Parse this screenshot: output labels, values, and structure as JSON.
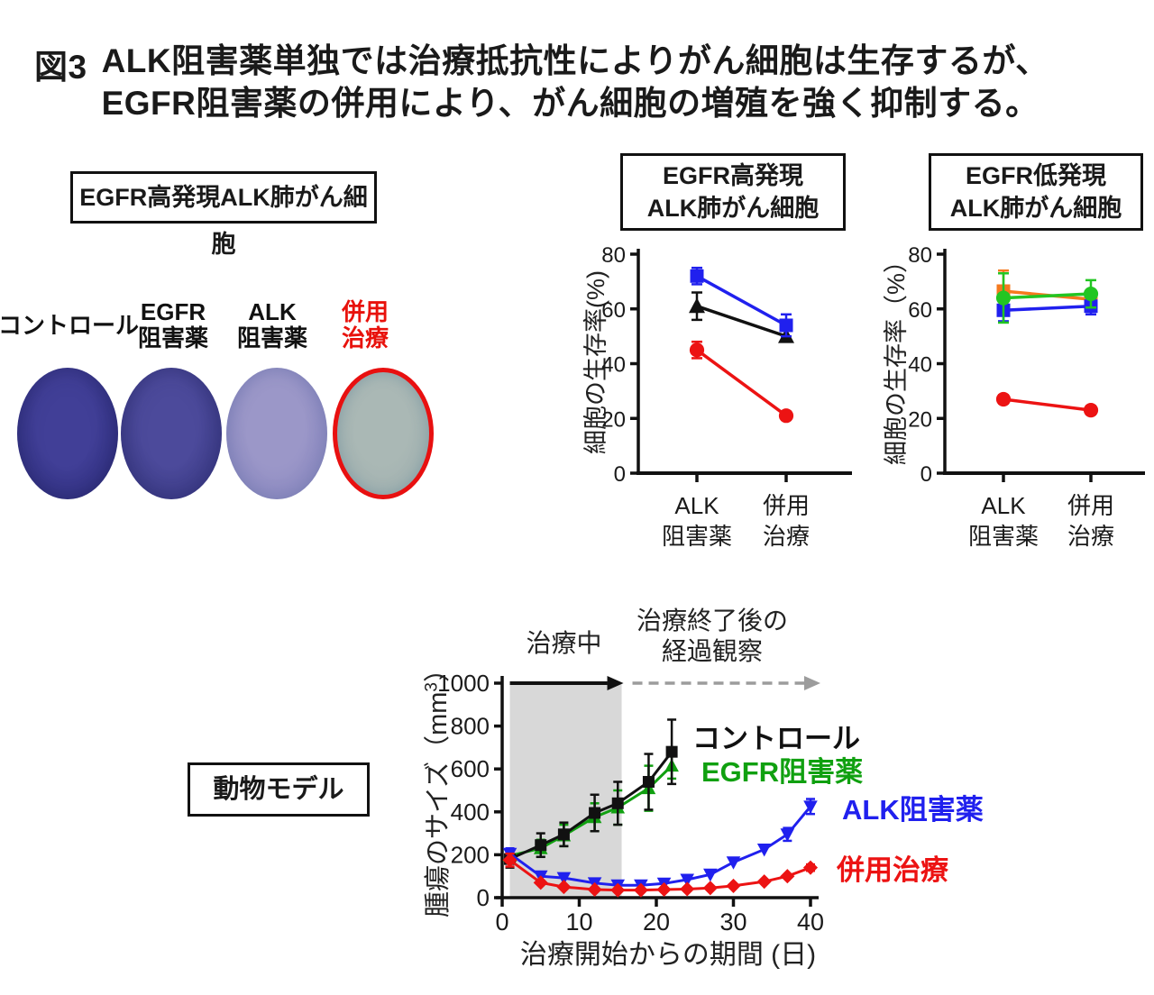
{
  "figure": {
    "title_prefix": "図3",
    "title_line1": "ALK阻害薬単独では治療抵抗性によりがん細胞は生存するが、",
    "title_line2": "EGFR阻害薬の併用により、がん細胞の増殖を強く抑制する。"
  },
  "invitro_panel": {
    "header": "EGFR高発現ALK肺がん細胞",
    "conditions": [
      {
        "name": "control",
        "label_lines": [
          "コントロール"
        ],
        "label_color": "#111111"
      },
      {
        "name": "egfr-inhibitor",
        "label_lines": [
          "EGFR",
          "阻害薬"
        ],
        "label_color": "#111111"
      },
      {
        "name": "alk-inhibitor",
        "label_lines": [
          "ALK",
          "阻害薬"
        ],
        "label_color": "#111111"
      },
      {
        "name": "combination",
        "label_lines": [
          "併用",
          "治療"
        ],
        "label_color": "#e8120c"
      }
    ],
    "dish_colors": [
      {
        "center": "#413f97",
        "mid": "#38378b",
        "edge": "#2e2d7a",
        "rim": "#272668"
      },
      {
        "center": "#4c4a9b",
        "mid": "#434290",
        "edge": "#3b3a88",
        "rim": "#33327a"
      },
      {
        "center": "#9b97c8",
        "mid": "#928fc4",
        "edge": "#8d8cc0",
        "rim": "#7d86b8"
      },
      {
        "center": "#aab8b5",
        "mid": "#a5b4b2",
        "edge": "#a0b0af",
        "rim": "#93a7ad",
        "ring": "#e81010"
      }
    ]
  },
  "animal_panel": {
    "header": "動物モデル"
  },
  "chart_data": [
    {
      "id": "egfr_high",
      "type": "line",
      "title_lines": [
        "EGFR高発現",
        "ALK肺がん細胞"
      ],
      "ylabel": "細胞の生存率(%)",
      "ylim": [
        0,
        80
      ],
      "yticks": [
        0,
        20,
        40,
        60,
        80
      ],
      "categories": [
        [
          "ALK",
          "阻害薬"
        ],
        [
          "併用",
          "治療"
        ]
      ],
      "series": [
        {
          "marker": "triangle-up",
          "color": "#111111",
          "values": [
            61,
            50
          ],
          "errors": [
            5,
            2
          ]
        },
        {
          "marker": "square",
          "color": "#2020ee",
          "values": [
            72,
            54
          ],
          "errors": [
            3,
            4
          ]
        },
        {
          "marker": "circle",
          "color": "#ec1313",
          "values": [
            45,
            21
          ],
          "errors": [
            3,
            1.5
          ]
        }
      ]
    },
    {
      "id": "egfr_low",
      "type": "line",
      "title_lines": [
        "EGFR低発現",
        "ALK肺がん細胞"
      ],
      "ylabel": "細胞の生存率（%）",
      "ylim": [
        0,
        80
      ],
      "yticks": [
        0,
        20,
        40,
        60,
        80
      ],
      "categories": [
        [
          "ALK",
          "阻害薬"
        ],
        [
          "併用",
          "治療"
        ]
      ],
      "series": [
        {
          "marker": "square",
          "color": "#f5791e",
          "values": [
            66.5,
            63.5
          ],
          "errors": [
            7.5,
            2
          ]
        },
        {
          "marker": "square",
          "color": "#2020ee",
          "values": [
            59.5,
            61
          ],
          "errors": [
            4,
            3
          ]
        },
        {
          "marker": "circle",
          "color": "#22c522",
          "values": [
            64,
            65.5
          ],
          "errors": [
            9,
            5
          ]
        },
        {
          "marker": "circle",
          "color": "#ec1313",
          "values": [
            27,
            23
          ],
          "errors": [
            1.5,
            1.5
          ]
        }
      ]
    },
    {
      "id": "animal",
      "type": "line",
      "xlabel": "治療開始からの期間 (日)",
      "ylabel_pre": "腫瘍のサイズ（mm",
      "ylabel_sup": "3",
      "ylabel_post": "）",
      "xlim": [
        0,
        41
      ],
      "xticks": [
        0,
        10,
        20,
        30,
        40
      ],
      "ylim": [
        0,
        1000
      ],
      "yticks": [
        0,
        200,
        400,
        600,
        800,
        1000
      ],
      "treatment_region": {
        "x0": 1,
        "x1": 15.5,
        "fill": "#d8d8d8",
        "label": "治療中"
      },
      "observation_lines": [
        "治療終了後の",
        "経過観察"
      ],
      "arrow_colors": {
        "treatment": "#111111",
        "observation": "#9c9c9c"
      },
      "series": [
        {
          "name": "EGFR阻害薬",
          "marker": "triangle-up",
          "color": "#10a010",
          "x": [
            1,
            5,
            8,
            12,
            15,
            19,
            22
          ],
          "y": [
            195,
            230,
            290,
            375,
            420,
            510,
            615
          ],
          "err": [
            25,
            40,
            50,
            65,
            80,
            105,
            60
          ]
        },
        {
          "name": "コントロール",
          "marker": "square",
          "color": "#111111",
          "x": [
            1,
            5,
            8,
            12,
            15,
            19,
            22
          ],
          "y": [
            180,
            245,
            295,
            395,
            440,
            540,
            680
          ],
          "err": [
            40,
            55,
            55,
            85,
            100,
            130,
            150
          ]
        },
        {
          "name": "ALK阻害薬",
          "marker": "triangle-down",
          "color": "#2020ee",
          "x": [
            1,
            5,
            8,
            12,
            15,
            18,
            21,
            24,
            27,
            30,
            34,
            37,
            40
          ],
          "y": [
            205,
            100,
            92,
            68,
            58,
            58,
            66,
            84,
            108,
            165,
            225,
            295,
            425
          ],
          "err": [
            25,
            0,
            0,
            0,
            0,
            0,
            0,
            0,
            0,
            0,
            0,
            30,
            35
          ]
        },
        {
          "name": "併用治療",
          "marker": "diamond",
          "color": "#ec1313",
          "x": [
            1,
            5,
            8,
            12,
            15,
            18,
            21,
            24,
            27,
            30,
            34,
            37,
            40
          ],
          "y": [
            175,
            70,
            50,
            38,
            35,
            35,
            38,
            40,
            45,
            55,
            75,
            100,
            140
          ],
          "err": [
            30,
            0,
            0,
            0,
            0,
            0,
            0,
            0,
            0,
            0,
            0,
            0,
            15
          ]
        }
      ],
      "legend_order": [
        "コントロール",
        "EGFR阻害薬",
        "ALK阻害薬",
        "併用治療"
      ]
    }
  ]
}
